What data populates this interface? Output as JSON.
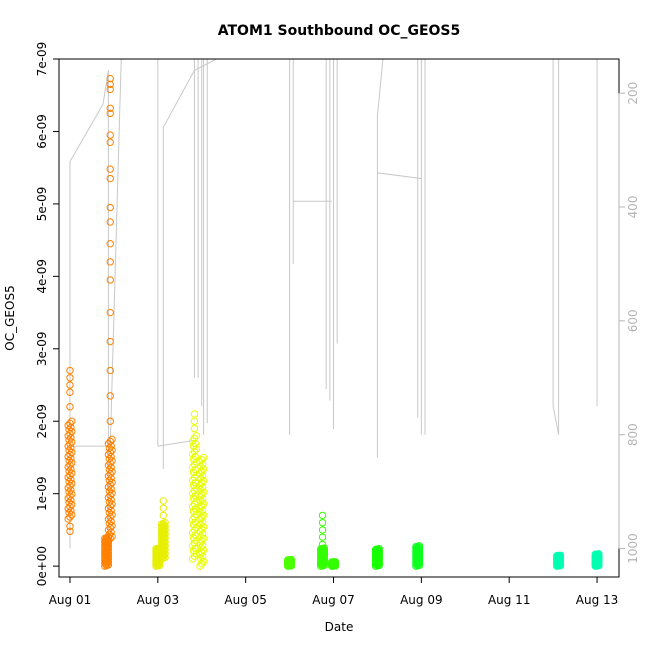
{
  "chart_data": {
    "type": "scatter",
    "title": "ATOM1 Southbound OC_GEOS5",
    "xlabel": "Date",
    "ylabel": "OC_GEOS5",
    "xlim": [
      "2016-07-31T18:00",
      "2016-08-13T12:00"
    ],
    "ylim": [
      -1.5e-10,
      7e-09
    ],
    "y2lim_pressure_hPa": [
      1050,
      140
    ],
    "x_ticks": [
      {
        "label": "Aug 01",
        "date": "2016-08-01"
      },
      {
        "label": "Aug 03",
        "date": "2016-08-03"
      },
      {
        "label": "Aug 05",
        "date": "2016-08-05"
      },
      {
        "label": "Aug 07",
        "date": "2016-08-07"
      },
      {
        "label": "Aug 09",
        "date": "2016-08-09"
      },
      {
        "label": "Aug 11",
        "date": "2016-08-11"
      },
      {
        "label": "Aug 13",
        "date": "2016-08-13"
      }
    ],
    "y_ticks": [
      {
        "label": "0e+00",
        "value": 0
      },
      {
        "label": "1e-09",
        "value": 1e-09
      },
      {
        "label": "2e-09",
        "value": 2e-09
      },
      {
        "label": "3e-09",
        "value": 3e-09
      },
      {
        "label": "4e-09",
        "value": 4e-09
      },
      {
        "label": "5e-09",
        "value": 5e-09
      },
      {
        "label": "6e-09",
        "value": 6e-09
      },
      {
        "label": "7e-09",
        "value": 7e-09
      }
    ],
    "y2_ticks": [
      {
        "label": "200",
        "value": 200
      },
      {
        "label": "400",
        "value": 400
      },
      {
        "label": "600",
        "value": 600
      },
      {
        "label": "800",
        "value": 800
      },
      {
        "label": "1000",
        "value": 1000
      }
    ],
    "grid": false,
    "marker": "open-circle",
    "colors": {
      "axis": "#000000",
      "pressure_line": "#c8c8c8",
      "pressure_axis": "#b4b4b4"
    },
    "flights": [
      {
        "date": "2016-08-01T00:00",
        "color": "#ff8000",
        "base": [
          6.5e-10,
          2e-09
        ],
        "outliers": [
          2.2e-09,
          2.4e-09,
          2.5e-09,
          2.6e-09,
          2.7e-09,
          4.8e-10,
          5.5e-10
        ]
      },
      {
        "date": "2016-08-01T20:00",
        "color": "#ff8000",
        "base": [
          0.0,
          4e-10
        ],
        "outliers": []
      },
      {
        "date": "2016-08-01T22:00",
        "color": "#ff8000",
        "base": [
          3.5e-10,
          1.75e-09
        ],
        "outliers": [
          2e-09,
          2.35e-09,
          2.7e-09,
          3.1e-09,
          3.5e-09,
          3.95e-09,
          4.2e-09,
          4.45e-09,
          4.75e-09,
          4.95e-09,
          5.35e-09,
          5.48e-09,
          5.85e-09,
          5.95e-09,
          6.25e-09,
          6.32e-09,
          6.58e-09,
          6.65e-09,
          6.73e-09
        ]
      },
      {
        "date": "2016-08-03T00:00",
        "color": "#e6ef00",
        "base": [
          0.0,
          2.5e-10
        ],
        "outliers": []
      },
      {
        "date": "2016-08-03T03:00",
        "color": "#e6ef00",
        "base": [
          1e-10,
          6e-10
        ],
        "outliers": [
          7e-10,
          8e-10,
          9e-10
        ]
      },
      {
        "date": "2016-08-03T20:00",
        "color": "#e6ff00",
        "base": [
          1e-10,
          1.8e-09
        ],
        "outliers": [
          1.9e-09,
          2e-09,
          2.1e-09
        ]
      },
      {
        "date": "2016-08-04T00:00",
        "color": "#e6ff00",
        "base": [
          0.0,
          1.5e-09
        ],
        "outliers": []
      },
      {
        "date": "2016-08-06T00:00",
        "color": "#4cff00",
        "base": [
          0.0,
          9e-11
        ],
        "outliers": []
      },
      {
        "date": "2016-08-06T18:00",
        "color": "#33ff00",
        "base": [
          0.0,
          2.5e-10
        ],
        "outliers": [
          3e-10,
          4e-10,
          5e-10,
          6e-10,
          7e-10
        ]
      },
      {
        "date": "2016-08-07T00:00",
        "color": "#33ff00",
        "base": [
          0.0,
          6e-11
        ],
        "outliers": []
      },
      {
        "date": "2016-08-08T00:00",
        "color": "#19ff00",
        "base": [
          0.0,
          2.4e-10
        ],
        "outliers": []
      },
      {
        "date": "2016-08-08T22:00",
        "color": "#0fff1e",
        "base": [
          0.0,
          2.8e-10
        ],
        "outliers": []
      },
      {
        "date": "2016-08-12T03:00",
        "color": "#00ffb0",
        "base": [
          0.0,
          1.5e-10
        ],
        "outliers": []
      },
      {
        "date": "2016-08-13T00:00",
        "color": "#00ffb0",
        "base": [
          0.0,
          1.7e-10
        ],
        "outliers": []
      }
    ]
  }
}
